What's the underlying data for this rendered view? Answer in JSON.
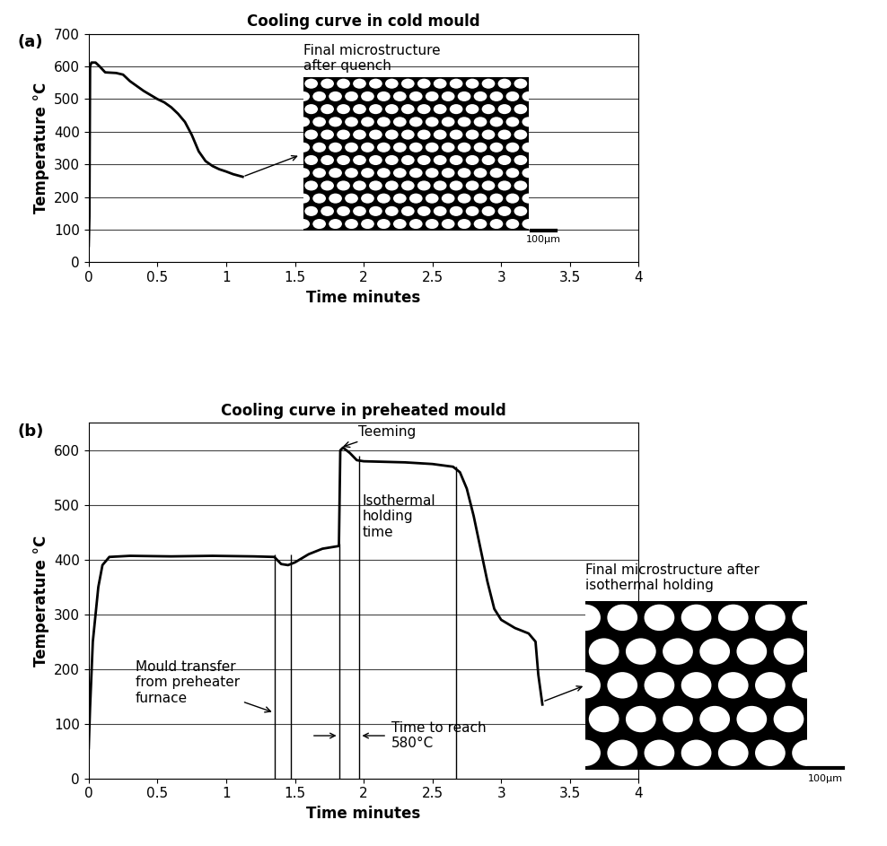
{
  "chart_data": [
    {
      "type": "line",
      "label": "(a)",
      "title": "Cooling curve in cold mould",
      "x_label": "Time minutes",
      "y_label": "Temperature °C",
      "x": [
        0,
        0.005,
        0.01,
        0.02,
        0.05,
        0.08,
        0.12,
        0.2,
        0.25,
        0.3,
        0.35,
        0.4,
        0.5,
        0.55,
        0.6,
        0.65,
        0.7,
        0.75,
        0.8,
        0.85,
        0.9,
        0.95,
        1.0,
        1.05,
        1.12
      ],
      "values": [
        50,
        140,
        600,
        612,
        612,
        600,
        582,
        580,
        575,
        555,
        540,
        525,
        500,
        490,
        475,
        455,
        430,
        390,
        340,
        310,
        295,
        285,
        278,
        270,
        262
      ],
      "color": "#000000",
      "xlim": [
        0,
        4
      ],
      "ylim": [
        0,
        700
      ],
      "xticks": [
        0,
        0.5,
        1,
        1.5,
        2,
        2.5,
        3,
        3.5,
        4
      ],
      "yticks": [
        0,
        100,
        200,
        300,
        400,
        500,
        600,
        700
      ],
      "grid": "y",
      "image": {
        "caption": "Final microstructure\nafter quench",
        "scale_bar": "100µm",
        "x": 1.12,
        "y": 262
      }
    },
    {
      "type": "line",
      "label": "(b)",
      "title": "Cooling curve in preheated mould",
      "x_label": "Time minutes",
      "y_label": "Temperature °C",
      "x": [
        0,
        0.01,
        0.03,
        0.05,
        0.07,
        0.1,
        0.15,
        0.3,
        0.6,
        0.9,
        1.2,
        1.35,
        1.4,
        1.45,
        1.5,
        1.6,
        1.7,
        1.82,
        1.83,
        1.85,
        1.9,
        1.95,
        2.0,
        2.3,
        2.5,
        2.65,
        2.7,
        2.75,
        2.8,
        2.85,
        2.9,
        2.95,
        3.0,
        3.1,
        3.2,
        3.25,
        3.27,
        3.3
      ],
      "values": [
        55,
        130,
        250,
        300,
        350,
        390,
        405,
        407,
        406,
        407,
        406,
        405,
        392,
        390,
        395,
        410,
        420,
        425,
        600,
        605,
        595,
        582,
        580,
        578,
        575,
        570,
        560,
        530,
        480,
        420,
        360,
        310,
        290,
        275,
        265,
        250,
        190,
        135
      ],
      "color": "#000000",
      "xlim": [
        0,
        4
      ],
      "ylim": [
        0,
        650
      ],
      "xticks": [
        0,
        0.5,
        1,
        1.5,
        2,
        2.5,
        3,
        3.5,
        4
      ],
      "yticks": [
        0,
        100,
        200,
        300,
        400,
        500,
        600
      ],
      "grid": "y",
      "vertical_lines": [
        {
          "x": 1.35,
          "y": 410
        },
        {
          "x": 1.47,
          "y": 410
        },
        {
          "x": 1.82,
          "y": 430
        },
        {
          "x": 1.97,
          "y": 590
        },
        {
          "x": 2.67,
          "y": 570
        }
      ],
      "annotations": [
        {
          "text": "Teeming",
          "x": 1.83,
          "y": 605
        },
        {
          "text": "Isothermal\nholding\ntime"
        },
        {
          "text": "Mould transfer\nfrom preheater\nfurnace",
          "x": 1.35,
          "y": 120
        },
        {
          "text": "Time to reach\n580°C",
          "between": [
            1.82,
            1.97
          ]
        }
      ],
      "image": {
        "caption": "Final microstructure after\nisothermal holding",
        "scale_bar": "100µm",
        "x": 3.3,
        "y": 140
      }
    }
  ]
}
